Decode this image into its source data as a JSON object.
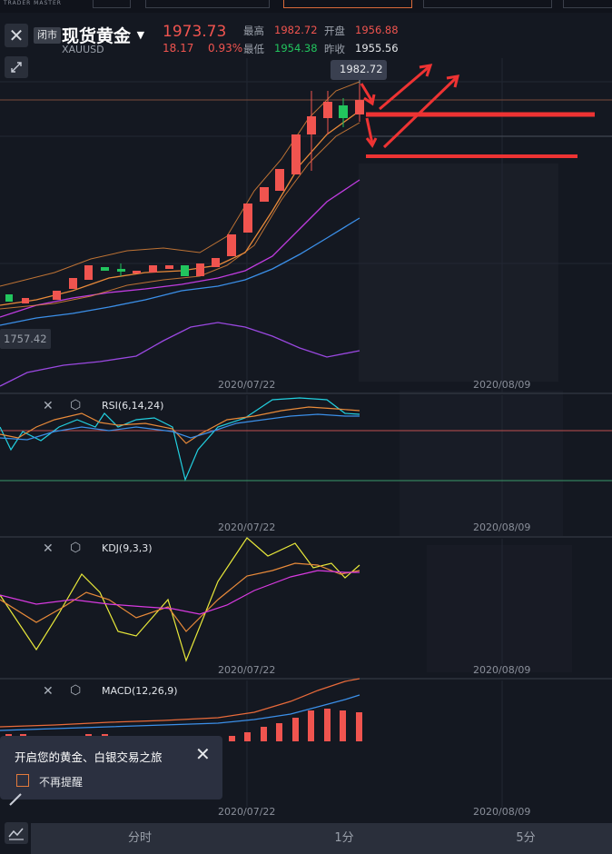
{
  "header": {
    "close_icon": "close-icon",
    "market_status": "闭市",
    "instrument_name": "现货黄金",
    "dropdown_icon": "caret-down-icon",
    "symbol": "XAUUSD",
    "last_price": "1973.73",
    "change": "18.17",
    "change_pct": "0.93%",
    "stats": {
      "high_label": "最高",
      "high_value": "1982.72",
      "open_label": "开盘",
      "open_value": "1956.88",
      "low_label": "最低",
      "low_value": "1954.38",
      "prev_close_label": "昨收",
      "prev_close_value": "1955.56"
    },
    "tool_icon": "expand-arrows-icon"
  },
  "main_chart": {
    "high_marker": "1982.72",
    "low_marker": "1757.42",
    "date_labels": [
      "2020/07/22",
      "2020/08/09"
    ]
  },
  "indicators": {
    "rsi": {
      "label": "RSI(6,14,24)",
      "dates": [
        "2020/07/22",
        "2020/08/09"
      ]
    },
    "kdj": {
      "label": "KDJ(9,3,3)",
      "dates": [
        "2020/07/22",
        "2020/08/09"
      ]
    },
    "macd": {
      "label": "MACD(12,26,9)",
      "dates": [
        "2020/07/22",
        "2020/08/09"
      ]
    }
  },
  "popup": {
    "message": "开启您的黄金、白银交易之旅",
    "checkbox_label": "不再提醒"
  },
  "tabs": {
    "items": [
      "分时",
      "1分",
      "5分"
    ]
  },
  "colors": {
    "up": "#f0544f",
    "down": "#22c55e",
    "background": "#141821",
    "annotation": "#ee3333"
  }
}
